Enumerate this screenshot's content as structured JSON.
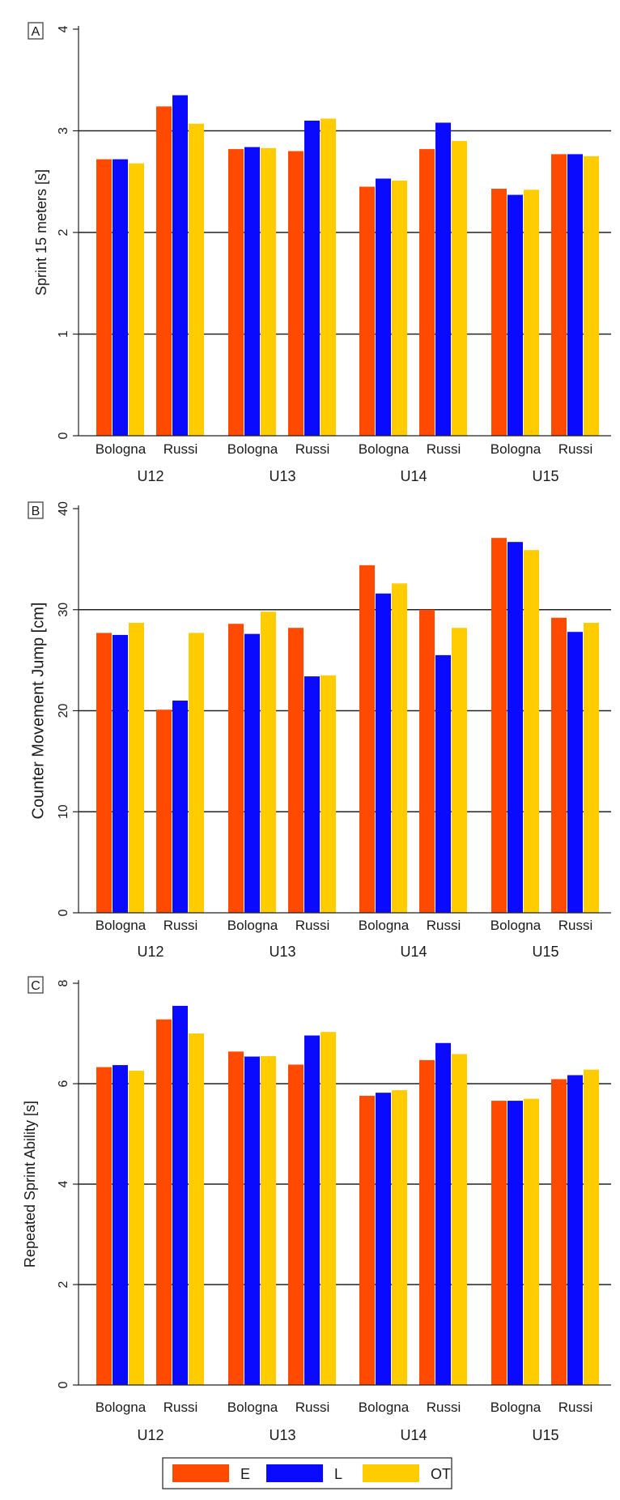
{
  "figure": {
    "legend": {
      "position": "bottom-center",
      "entries": [
        {
          "label": "E",
          "color": "#ff4a00"
        },
        {
          "label": "L",
          "color": "#0a0aff"
        },
        {
          "label": "OT",
          "color": "#ffcc00"
        }
      ]
    }
  },
  "chart_data": [
    {
      "panel": "A",
      "type": "bar",
      "ylabel": "Sprint 15 meters [s]",
      "ylim": [
        0,
        4
      ],
      "yticks": [
        0,
        1,
        2,
        3,
        4
      ],
      "grid": true,
      "groups": [
        "U12",
        "U13",
        "U14",
        "U15"
      ],
      "subcategories": [
        "Bologna",
        "Russi"
      ],
      "series_names": [
        "E",
        "L",
        "OT"
      ],
      "values": [
        [
          [
            2.72,
            2.72,
            2.68
          ],
          [
            3.24,
            3.35,
            3.07
          ]
        ],
        [
          [
            2.82,
            2.84,
            2.83
          ],
          [
            2.8,
            3.1,
            3.12
          ]
        ],
        [
          [
            2.45,
            2.53,
            2.51
          ],
          [
            2.82,
            3.08,
            2.9
          ]
        ],
        [
          [
            2.43,
            2.37,
            2.42
          ],
          [
            2.77,
            2.77,
            2.75
          ]
        ]
      ]
    },
    {
      "panel": "B",
      "type": "bar",
      "ylabel": "Counter Movement Jump [cm]",
      "ylim": [
        0,
        40
      ],
      "yticks": [
        0,
        10,
        20,
        30,
        40
      ],
      "grid": true,
      "groups": [
        "U12",
        "U13",
        "U14",
        "U15"
      ],
      "subcategories": [
        "Bologna",
        "Russi"
      ],
      "series_names": [
        "E",
        "L",
        "OT"
      ],
      "values": [
        [
          [
            27.7,
            27.5,
            28.7
          ],
          [
            20.1,
            21.0,
            27.7
          ]
        ],
        [
          [
            28.6,
            27.6,
            29.8
          ],
          [
            28.2,
            23.4,
            23.5
          ]
        ],
        [
          [
            34.4,
            31.6,
            32.6
          ],
          [
            30.0,
            25.5,
            28.2
          ]
        ],
        [
          [
            37.1,
            36.7,
            35.9
          ],
          [
            29.2,
            27.8,
            28.7
          ]
        ]
      ]
    },
    {
      "panel": "C",
      "type": "bar",
      "ylabel": "Repeated Sprint Ability [s]",
      "ylim": [
        0,
        8
      ],
      "yticks": [
        0,
        2,
        4,
        6,
        8
      ],
      "grid": true,
      "groups": [
        "U12",
        "U13",
        "U14",
        "U15"
      ],
      "subcategories": [
        "Bologna",
        "Russi"
      ],
      "series_names": [
        "E",
        "L",
        "OT"
      ],
      "values": [
        [
          [
            6.33,
            6.37,
            6.26
          ],
          [
            7.28,
            7.55,
            7.0
          ]
        ],
        [
          [
            6.64,
            6.54,
            6.55
          ],
          [
            6.38,
            6.96,
            7.03
          ]
        ],
        [
          [
            5.76,
            5.82,
            5.87
          ],
          [
            6.47,
            6.81,
            6.59
          ]
        ],
        [
          [
            5.66,
            5.66,
            5.7
          ],
          [
            6.09,
            6.17,
            6.28
          ]
        ]
      ]
    }
  ]
}
